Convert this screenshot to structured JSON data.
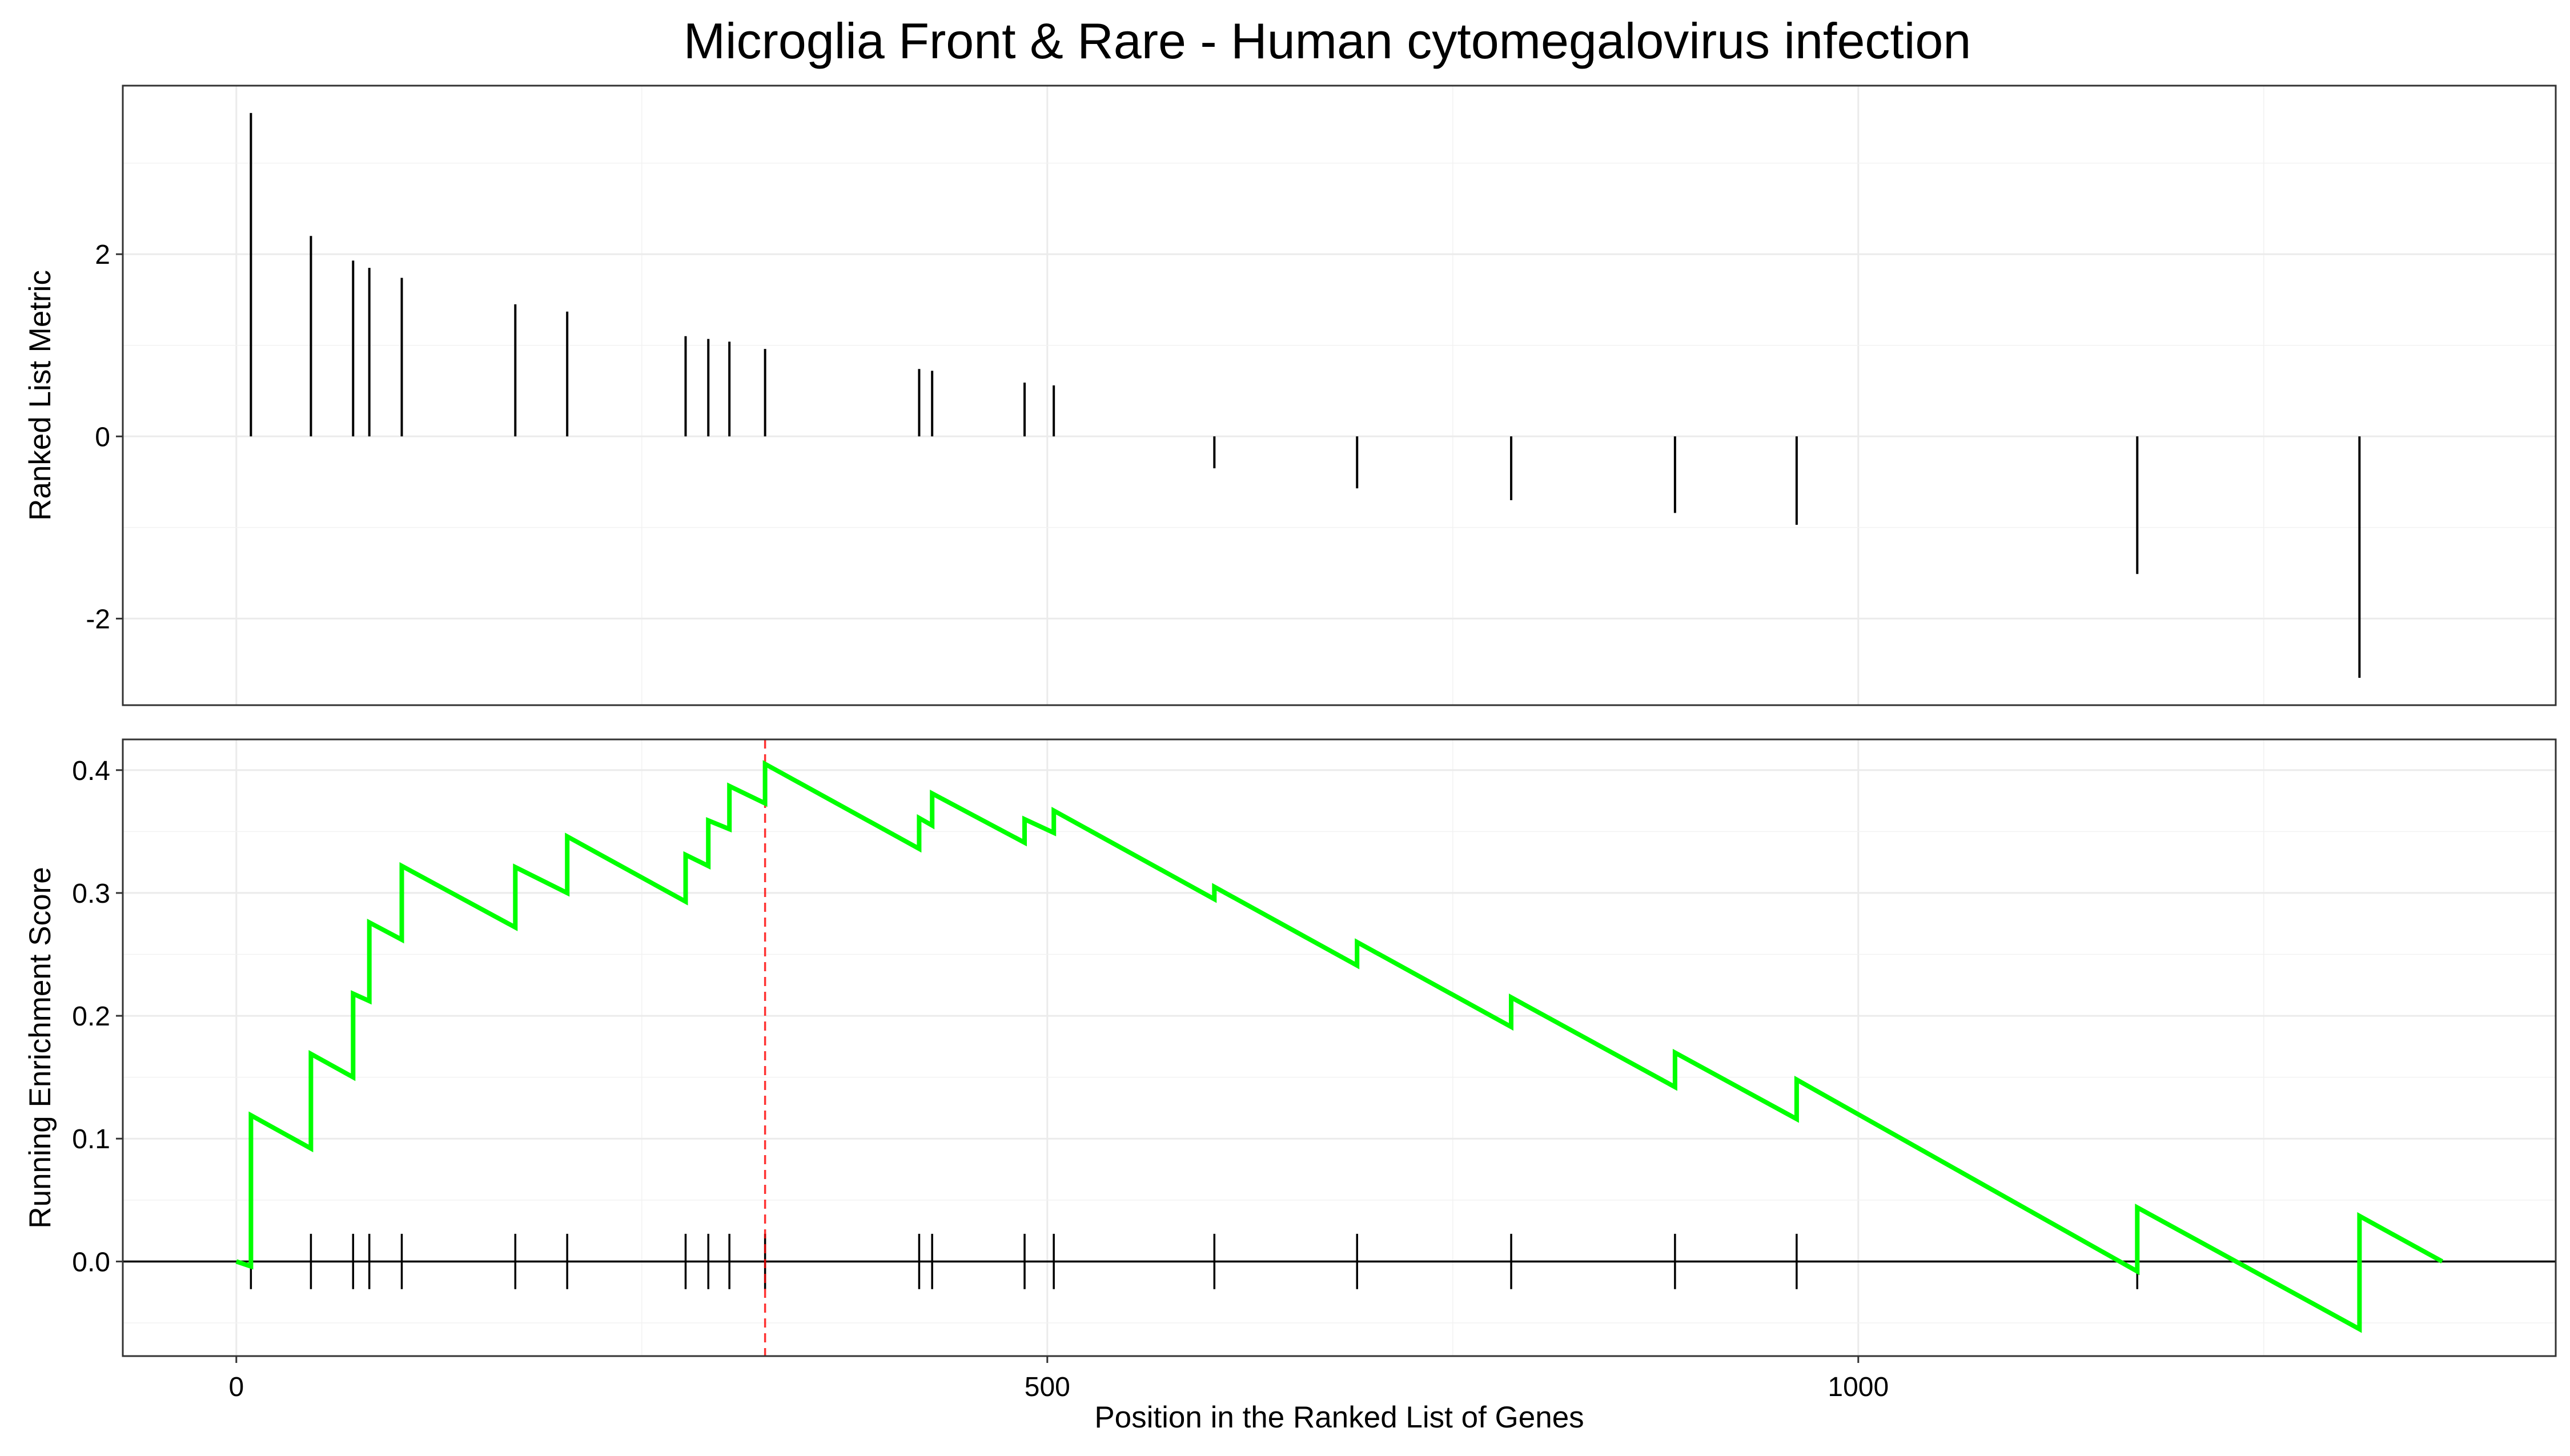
{
  "chart_data": {
    "type": "line",
    "title": "Microglia Front & Rare - Human cytomegalovirus infection",
    "xlabel": "Position in the Ranked List of Genes",
    "xlim": [
      -70,
      1430
    ],
    "x_ticks": [
      0,
      500,
      1000
    ],
    "x_tick_labels": [
      "0",
      "500",
      "1000"
    ],
    "hit_positions": [
      9,
      46,
      72,
      82,
      102,
      172,
      204,
      277,
      291,
      304,
      326,
      421,
      429,
      486,
      504,
      603,
      691,
      786,
      887,
      962,
      1172,
      1309
    ],
    "panels": [
      {
        "name": "ranked-metric",
        "ylabel": "Ranked List Metric",
        "ylim": [
          -2.95,
          3.85
        ],
        "y_ticks": [
          -2,
          0,
          2
        ],
        "y_tick_labels": [
          "-2",
          "0",
          "2"
        ],
        "values": [
          3.55,
          2.2,
          1.93,
          1.85,
          1.74,
          1.45,
          1.37,
          1.1,
          1.07,
          1.04,
          0.96,
          0.74,
          0.72,
          0.59,
          0.56,
          -0.35,
          -0.57,
          -0.7,
          -0.84,
          -0.97,
          -1.51,
          -2.65
        ]
      },
      {
        "name": "running-enrichment-score",
        "ylabel": "Running Enrichment Score",
        "ylim": [
          -0.077,
          0.425
        ],
        "y_ticks": [
          0.0,
          0.1,
          0.2,
          0.3,
          0.4
        ],
        "y_tick_labels": [
          "0.0",
          "0.1",
          "0.2",
          "0.3",
          "0.4"
        ],
        "series": [
          {
            "color": "#00ff00",
            "x": [
              0,
              9,
              9,
              46,
              46,
              72,
              72,
              82,
              82,
              102,
              102,
              172,
              172,
              204,
              204,
              277,
              277,
              291,
              291,
              304,
              304,
              326,
              326,
              421,
              421,
              429,
              429,
              486,
              486,
              504,
              504,
              603,
              603,
              691,
              691,
              786,
              786,
              887,
              887,
              962,
              962,
              1172,
              1172,
              1309,
              1309,
              1360
            ],
            "y": [
              0.0,
              -0.004,
              0.119,
              0.092,
              0.169,
              0.15,
              0.218,
              0.212,
              0.276,
              0.262,
              0.322,
              0.272,
              0.321,
              0.3,
              0.346,
              0.293,
              0.331,
              0.322,
              0.359,
              0.352,
              0.387,
              0.373,
              0.405,
              0.336,
              0.361,
              0.355,
              0.381,
              0.341,
              0.36,
              0.349,
              0.367,
              0.295,
              0.305,
              0.241,
              0.26,
              0.191,
              0.215,
              0.142,
              0.17,
              0.116,
              0.148,
              -0.008,
              0.044,
              -0.055,
              0.037,
              0.0
            ]
          }
        ],
        "max_es_position": 326,
        "marker_color": "#ff0000"
      }
    ]
  }
}
